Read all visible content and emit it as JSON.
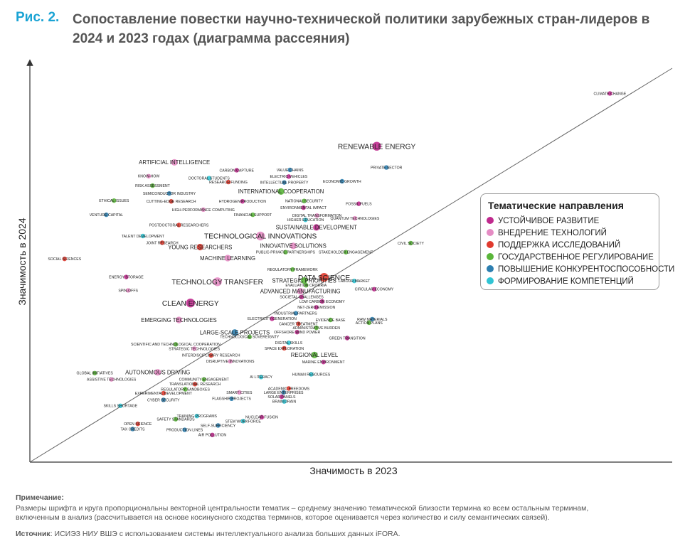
{
  "figure": {
    "label": "Рис. 2.",
    "title": "Сопоставление повестки научно-технической политики зарубежных стран-лидеров в 2024 и 2023 годах (диаграмма рассеяния)"
  },
  "notes": {
    "note_heading": "Примечание:",
    "note_line1": "Размеры шрифта и круга пропорциональны векторной центральности тематик – среднему значению тематической близости термина ко всем остальным терминам,",
    "note_line2": "включенным в анализ (рассчитывается на основе косинусного сходства терминов, которое оценивается через количество и силу семантических связей).",
    "source_heading": "Источник",
    "source_text": ": ИСИЭЗ НИУ ВШЭ с использованием системы интеллектуального анализа больших данных iFORA."
  },
  "legend": {
    "title": "Тематические направления",
    "items": [
      {
        "label": "УСТОЙЧИВОЕ РАЗВИТИЕ",
        "color": "#c02a8e"
      },
      {
        "label": "ВНЕДРЕНИЕ ТЕХНОЛОГИЙ",
        "color": "#e58cc4"
      },
      {
        "label": "ПОДДЕРЖКА ИССЛЕДОВАНИЙ",
        "color": "#e03a2e"
      },
      {
        "label": "ГОСУДАРСТВЕННОЕ РЕГУЛИРОВАНИЕ",
        "color": "#5ab63a"
      },
      {
        "label": "ПОВЫШЕНИЕ КОНКУРЕНТОСПОСОБНОСТИ",
        "color": "#2d7fb0"
      },
      {
        "label": "ФОРМИРОВАНИЕ КОМПЕТЕНЦИЙ",
        "color": "#31c4d4"
      }
    ]
  },
  "chart_data": {
    "type": "scatter",
    "xlabel": "Значимость в 2023",
    "ylabel": "Значимость в 2024",
    "xlim": [
      0,
      100
    ],
    "ylim": [
      0,
      100
    ],
    "diagonal": true,
    "grid": false,
    "legend_position": "right",
    "categories": [
      "sustain",
      "tech",
      "research",
      "gov",
      "compet",
      "skills"
    ],
    "colors": {
      "sustain": "#c02a8e",
      "tech": "#e58cc4",
      "research": "#e03a2e",
      "gov": "#5ab63a",
      "compet": "#2d7fb0",
      "skills": "#31c4d4"
    },
    "points": [
      {
        "label": "CLIMATE CHANGE",
        "x": 90.3,
        "y": 93.6,
        "cat": "sustain",
        "s": 1
      },
      {
        "label": "RENEWABLE ENERGY",
        "x": 54.0,
        "y": 80.2,
        "cat": "sustain",
        "s": 3
      },
      {
        "label": "PRIVATE SECTOR",
        "x": 55.5,
        "y": 74.8,
        "cat": "compet",
        "s": 1
      },
      {
        "label": "ARTIFICIAL INTELLIGENCE",
        "x": 22.5,
        "y": 76.1,
        "cat": "tech",
        "s": 2
      },
      {
        "label": "CARBON CAPTURE",
        "x": 32.2,
        "y": 74.1,
        "cat": "sustain",
        "s": 1
      },
      {
        "label": "VALUE CHAINS",
        "x": 40.5,
        "y": 74.2,
        "cat": "compet",
        "s": 1
      },
      {
        "label": "KNOW-HOW",
        "x": 18.5,
        "y": 72.6,
        "cat": "tech",
        "s": 1
      },
      {
        "label": "ELECTRIC VEHICLES",
        "x": 40.3,
        "y": 72.5,
        "cat": "sustain",
        "s": 1
      },
      {
        "label": "DOCTORAL STUDENTS",
        "x": 27.9,
        "y": 72.1,
        "cat": "skills",
        "s": 1
      },
      {
        "label": "ECONOMIC GROWTH",
        "x": 48.6,
        "y": 71.3,
        "cat": "compet",
        "s": 1
      },
      {
        "label": "RESEARCH FUNDING",
        "x": 30.9,
        "y": 71.1,
        "cat": "research",
        "s": 1
      },
      {
        "label": "INTELLECTUAL PROPERTY",
        "x": 39.6,
        "y": 71.0,
        "cat": "compet",
        "s": 1
      },
      {
        "label": "RISK ASSESSMENT",
        "x": 19.1,
        "y": 70.2,
        "cat": "gov",
        "s": 1
      },
      {
        "label": "INTERNATIONAL COOPERATION",
        "x": 39.1,
        "y": 68.7,
        "cat": "gov",
        "s": 2
      },
      {
        "label": "SEMICONDUCTOR INDUSTRY",
        "x": 21.7,
        "y": 68.2,
        "cat": "compet",
        "s": 1
      },
      {
        "label": "ETHICAL ISSUES",
        "x": 13.1,
        "y": 66.4,
        "cat": "gov",
        "s": 1
      },
      {
        "label": "CUTTING-EDGE RESEARCH",
        "x": 22.0,
        "y": 66.2,
        "cat": "research",
        "s": 1
      },
      {
        "label": "HYDROGEN PRODUCTION",
        "x": 33.1,
        "y": 66.2,
        "cat": "sustain",
        "s": 1
      },
      {
        "label": "NATIONAL SECURITY",
        "x": 42.7,
        "y": 66.3,
        "cat": "gov",
        "s": 1
      },
      {
        "label": "FOSSIL FUELS",
        "x": 51.2,
        "y": 65.6,
        "cat": "sustain",
        "s": 1
      },
      {
        "label": "ENVIRONMENTAL IMPACT",
        "x": 42.6,
        "y": 64.6,
        "cat": "sustain",
        "s": 1
      },
      {
        "label": "HIGH-PERFORMANCE COMPUTING",
        "x": 27.0,
        "y": 64.1,
        "cat": "tech",
        "s": 1
      },
      {
        "label": "VENTURE CAPITAL",
        "x": 11.9,
        "y": 62.8,
        "cat": "compet",
        "s": 1
      },
      {
        "label": "FINANCIAL SUPPORT",
        "x": 34.7,
        "y": 62.8,
        "cat": "gov",
        "s": 1
      },
      {
        "label": "DIGITAL TRANSFORMATION",
        "x": 44.7,
        "y": 62.6,
        "cat": "tech",
        "s": 1
      },
      {
        "label": "QUANTUM TECHNOLOGIES",
        "x": 50.6,
        "y": 61.9,
        "cat": "tech",
        "s": 1
      },
      {
        "label": "HIGHER EDUCATION",
        "x": 42.9,
        "y": 61.5,
        "cat": "skills",
        "s": 1
      },
      {
        "label": "POSTDOCTORAL RESEARCHERS",
        "x": 23.2,
        "y": 60.2,
        "cat": "research",
        "s": 1
      },
      {
        "label": "SUSTAINABLE DEVELOPMENT",
        "x": 44.6,
        "y": 59.6,
        "cat": "sustain",
        "s": 2
      },
      {
        "label": "TECHNOLOGICAL INNOVATIONS",
        "x": 35.9,
        "y": 57.4,
        "cat": "tech",
        "s": 3
      },
      {
        "label": "TALENT DEVELOPMENT",
        "x": 17.6,
        "y": 57.4,
        "cat": "skills",
        "s": 1
      },
      {
        "label": "CIVIL SOCIETY",
        "x": 59.3,
        "y": 55.6,
        "cat": "gov",
        "s": 1
      },
      {
        "label": "JOINT RESEARCH",
        "x": 20.6,
        "y": 55.7,
        "cat": "research",
        "s": 1
      },
      {
        "label": "INNOVATIVE SOLUTIONS",
        "x": 41.0,
        "y": 54.9,
        "cat": "tech",
        "s": 2
      },
      {
        "label": "YOUNG RESEARCHERS",
        "x": 26.5,
        "y": 54.6,
        "cat": "research",
        "s": 2
      },
      {
        "label": "PUBLIC-PRIVATE PARTNERSHIPS",
        "x": 39.8,
        "y": 53.3,
        "cat": "gov",
        "s": 1
      },
      {
        "label": "STAKEHOLDER ENGAGEMENT",
        "x": 49.2,
        "y": 53.3,
        "cat": "gov",
        "s": 1
      },
      {
        "label": "MACHINE LEARNING",
        "x": 30.8,
        "y": 51.8,
        "cat": "tech",
        "s": 2
      },
      {
        "label": "SOCIAL SCIENCES",
        "x": 5.4,
        "y": 51.6,
        "cat": "research",
        "s": 1
      },
      {
        "label": "REGULATORY FRAMEWORK",
        "x": 40.9,
        "y": 48.9,
        "cat": "gov",
        "s": 1
      },
      {
        "label": "DATA SCIENCE",
        "x": 45.8,
        "y": 46.9,
        "cat": "research",
        "s": 3
      },
      {
        "label": "ENERGY STORAGE",
        "x": 15.0,
        "y": 47.0,
        "cat": "sustain",
        "s": 1
      },
      {
        "label": "TECHNOLOGY TRANSFER",
        "x": 29.2,
        "y": 45.8,
        "cat": "tech",
        "s": 3
      },
      {
        "label": "STRATEGIC PRIORITIES",
        "x": 42.7,
        "y": 46.1,
        "cat": "gov",
        "s": 2
      },
      {
        "label": "LABOUR MARKET",
        "x": 50.5,
        "y": 46.0,
        "cat": "skills",
        "s": 1
      },
      {
        "label": "EVALUATION CRITERIA",
        "x": 43.0,
        "y": 44.9,
        "cat": "gov",
        "s": 1
      },
      {
        "label": "SPIN-OFFS",
        "x": 15.3,
        "y": 43.6,
        "cat": "tech",
        "s": 1
      },
      {
        "label": "CIRCULAR ECONOMY",
        "x": 53.6,
        "y": 43.9,
        "cat": "sustain",
        "s": 1
      },
      {
        "label": "ADVANCED MANUFACTURING",
        "x": 42.1,
        "y": 43.4,
        "cat": "tech",
        "s": 2
      },
      {
        "label": "SOCIETAL CHALLENGES",
        "x": 42.3,
        "y": 41.9,
        "cat": "sustain",
        "s": 1
      },
      {
        "label": "CLEAN ENERGY",
        "x": 25.0,
        "y": 40.4,
        "cat": "sustain",
        "s": 3
      },
      {
        "label": "LOW CARBON ECONOMY",
        "x": 45.5,
        "y": 40.8,
        "cat": "sustain",
        "s": 1
      },
      {
        "label": "NET-ZERO EMISSION",
        "x": 44.6,
        "y": 39.3,
        "cat": "sustain",
        "s": 1
      },
      {
        "label": "INDUSTRIAL PARTNERS",
        "x": 41.4,
        "y": 37.8,
        "cat": "compet",
        "s": 1
      },
      {
        "label": "EMERGING TECHNOLOGIES",
        "x": 23.2,
        "y": 36.1,
        "cat": "tech",
        "s": 2
      },
      {
        "label": "ELECTRICITY GENERATION",
        "x": 37.7,
        "y": 36.4,
        "cat": "sustain",
        "s": 1
      },
      {
        "label": "EVIDENCE BASE",
        "x": 46.8,
        "y": 36.1,
        "cat": "gov",
        "s": 1
      },
      {
        "label": "RAW MATERIALS",
        "x": 53.3,
        "y": 36.3,
        "cat": "compet",
        "s": 1
      },
      {
        "label": "ACTION PLANS",
        "x": 52.8,
        "y": 35.4,
        "cat": "gov",
        "s": 1
      },
      {
        "label": "CANCER TREATMENT",
        "x": 41.8,
        "y": 35.1,
        "cat": "research",
        "s": 1
      },
      {
        "label": "ADMINISTRATIVE BURDEN",
        "x": 44.6,
        "y": 34.1,
        "cat": "gov",
        "s": 1
      },
      {
        "label": "LARGE-SCALE PROJECTS",
        "x": 31.9,
        "y": 32.9,
        "cat": "compet",
        "s": 2
      },
      {
        "label": "OFFSHORE WIND POWER",
        "x": 41.6,
        "y": 33.0,
        "cat": "sustain",
        "s": 1
      },
      {
        "label": "TECHNOLOGICAL SOVEREIGNTY",
        "x": 34.2,
        "y": 31.8,
        "cat": "gov",
        "s": 1
      },
      {
        "label": "GREEN TRANSITION",
        "x": 49.4,
        "y": 31.5,
        "cat": "sustain",
        "s": 1
      },
      {
        "label": "DIGITAL SKILLS",
        "x": 40.3,
        "y": 30.3,
        "cat": "skills",
        "s": 1
      },
      {
        "label": "SCIENTIFIC AND TECHNOLOGICAL COOPERATION",
        "x": 22.7,
        "y": 29.9,
        "cat": "gov",
        "s": 1
      },
      {
        "label": "SPACE EXPLORATION",
        "x": 39.6,
        "y": 28.9,
        "cat": "research",
        "s": 1
      },
      {
        "label": "STRATEGIC TECHNOLOGIES",
        "x": 25.6,
        "y": 28.8,
        "cat": "tech",
        "s": 1
      },
      {
        "label": "REGIONAL LEVEL",
        "x": 44.3,
        "y": 27.2,
        "cat": "gov",
        "s": 2
      },
      {
        "label": "INTERDISCIPLINARY RESEARCH",
        "x": 28.2,
        "y": 27.1,
        "cat": "research",
        "s": 1
      },
      {
        "label": "DISRUPTIVE INNOVATIONS",
        "x": 31.2,
        "y": 25.6,
        "cat": "tech",
        "s": 1
      },
      {
        "label": "MARINE ENVIRONMENT",
        "x": 45.7,
        "y": 25.4,
        "cat": "sustain",
        "s": 1
      },
      {
        "label": "AUTONOMOUS DRIVING",
        "x": 19.9,
        "y": 22.8,
        "cat": "tech",
        "s": 2
      },
      {
        "label": "GLOBAL INITIATIVES",
        "x": 10.1,
        "y": 22.6,
        "cat": "gov",
        "s": 1
      },
      {
        "label": "HUMAN RESOURCES",
        "x": 43.8,
        "y": 22.3,
        "cat": "skills",
        "s": 1
      },
      {
        "label": "AI LITERACY",
        "x": 36.0,
        "y": 21.6,
        "cat": "skills",
        "s": 1
      },
      {
        "label": "ASSISTIVE TECHNOLOGIES",
        "x": 12.7,
        "y": 21.0,
        "cat": "tech",
        "s": 1
      },
      {
        "label": "COMMUNITY ENGAGEMENT",
        "x": 27.1,
        "y": 21.0,
        "cat": "gov",
        "s": 1
      },
      {
        "label": "TRANSLATIONAL RESEARCH",
        "x": 25.7,
        "y": 19.8,
        "cat": "research",
        "s": 1
      },
      {
        "label": "ACADEMIC FREEDOMS",
        "x": 40.3,
        "y": 18.7,
        "cat": "research",
        "s": 1
      },
      {
        "label": "REGULATORY SANDBOXES",
        "x": 24.2,
        "y": 18.5,
        "cat": "gov",
        "s": 1
      },
      {
        "label": "SMART CITIES",
        "x": 32.6,
        "y": 17.7,
        "cat": "tech",
        "s": 1
      },
      {
        "label": "LARGE ENTERPRISES",
        "x": 39.5,
        "y": 17.7,
        "cat": "compet",
        "s": 1
      },
      {
        "label": "EXPERIMENTAL DEVELOPMENT",
        "x": 20.8,
        "y": 17.5,
        "cat": "research",
        "s": 1
      },
      {
        "label": "SOLAR PANELS",
        "x": 39.2,
        "y": 16.6,
        "cat": "sustain",
        "s": 1
      },
      {
        "label": "FLAGSHIP PROJECTS",
        "x": 31.4,
        "y": 16.1,
        "cat": "compet",
        "s": 1
      },
      {
        "label": "CYBER SECURITY",
        "x": 20.8,
        "y": 15.8,
        "cat": "compet",
        "s": 1
      },
      {
        "label": "BRAIN DRAIN",
        "x": 39.6,
        "y": 15.4,
        "cat": "skills",
        "s": 1
      },
      {
        "label": "SKILLS SHORTAGE",
        "x": 14.1,
        "y": 14.3,
        "cat": "skills",
        "s": 1
      },
      {
        "label": "TRAINING PROGRAMS",
        "x": 26.0,
        "y": 11.7,
        "cat": "skills",
        "s": 1
      },
      {
        "label": "NUCLEAR FUSION",
        "x": 36.1,
        "y": 11.4,
        "cat": "sustain",
        "s": 1
      },
      {
        "label": "SAFETY STANDARDS",
        "x": 22.7,
        "y": 10.9,
        "cat": "gov",
        "s": 1
      },
      {
        "label": "STEM WORKFORCE",
        "x": 33.2,
        "y": 10.4,
        "cat": "skills",
        "s": 1
      },
      {
        "label": "OPEN SCIENCE",
        "x": 16.8,
        "y": 9.7,
        "cat": "research",
        "s": 1
      },
      {
        "label": "SELF-SUFFICIENCY",
        "x": 29.3,
        "y": 9.3,
        "cat": "compet",
        "s": 1
      },
      {
        "label": "TAX CREDITS",
        "x": 16.0,
        "y": 8.4,
        "cat": "compet",
        "s": 1
      },
      {
        "label": "PRODUCTION LINES",
        "x": 24.1,
        "y": 8.2,
        "cat": "compet",
        "s": 1
      },
      {
        "label": "AIR POLLUTION",
        "x": 28.4,
        "y": 6.9,
        "cat": "sustain",
        "s": 1
      }
    ]
  }
}
